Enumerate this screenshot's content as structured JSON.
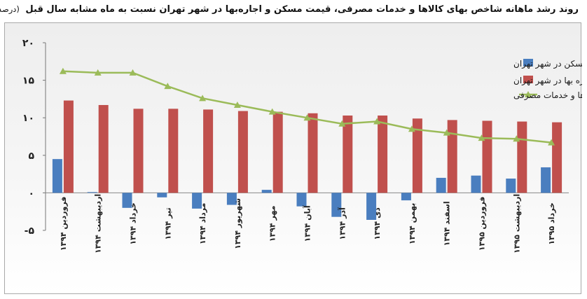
{
  "title": {
    "text": "روند رشد ماهانه شاخص بهای کالاها و خدمات مصرفی، قیمت مسکن و اجاره‌بها در شهر تهران نسبت به ماه مشابه سال قبل",
    "unit": "(درصد)"
  },
  "chart_data": {
    "type": "bar",
    "categories": [
      "فروردین ۱۳۹۴",
      "اردیبهشت ۱۳۹۴",
      "خرداد ۱۳۹۴",
      "تیر ۱۳۹۴",
      "مرداد ۱۳۹۴",
      "شهریور ۱۳۹۴",
      "مهر ۱۳۹۴",
      "آبان ۱۳۹۴",
      "آذر ۱۳۹۴",
      "دی ۱۳۹۴",
      "بهمن ۱۳۹۴",
      "اسفند ۱۳۹۴",
      "فروردین ۱۳۹۵",
      "اردیبهشت ۱۳۹۵",
      "خرداد ۱۳۹۵"
    ],
    "series": [
      {
        "name": "قیمت مسکن  در شهر تهران",
        "kind": "bar",
        "color": "#4a7ebf",
        "values": [
          4.5,
          0.1,
          -2.0,
          -0.6,
          -2.1,
          -1.6,
          0.4,
          -1.8,
          -3.2,
          -3.6,
          -1.0,
          2.0,
          2.3,
          1.9,
          3.4
        ]
      },
      {
        "name": "اجاره بها در شهر تهران",
        "kind": "bar",
        "color": "#c0504d",
        "values": [
          12.3,
          11.7,
          11.2,
          11.2,
          11.1,
          10.9,
          10.8,
          10.6,
          10.3,
          10.3,
          9.9,
          9.7,
          9.6,
          9.5,
          9.4
        ]
      },
      {
        "name": "شاخص بهای کالاها و خدمات مصرفی",
        "kind": "line",
        "color": "#9bbb59",
        "values": [
          16.2,
          16.0,
          16.0,
          14.2,
          12.6,
          11.7,
          10.8,
          10.0,
          9.2,
          9.5,
          8.5,
          8.0,
          7.3,
          7.2,
          6.7
        ]
      }
    ],
    "yticks": [
      "۲۰",
      "۱۵",
      "۱۰",
      "۵",
      "۰",
      "-۵"
    ],
    "ylim": [
      -5,
      20
    ],
    "legend_position": "top-right",
    "grid": false
  }
}
